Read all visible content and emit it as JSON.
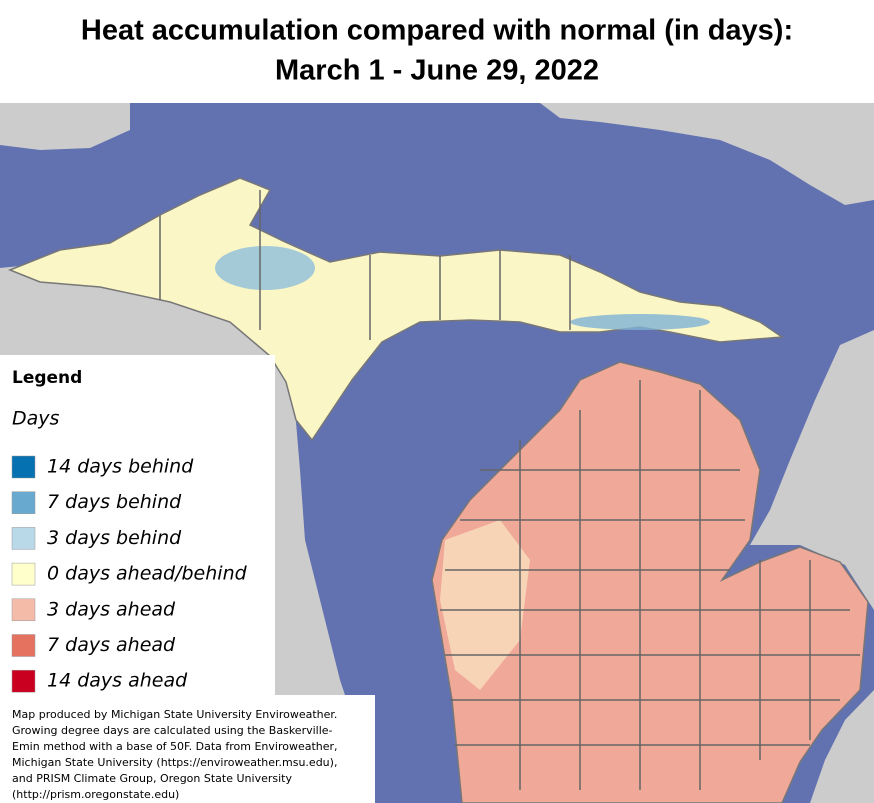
{
  "title": [
    "Heat accumulation compared with normal (in days):",
    "March 1 - June 29, 2022"
  ],
  "legend": {
    "title": "Legend",
    "subtitle": "Days",
    "items": [
      {
        "label": "14 days behind",
        "color": "#0571b0"
      },
      {
        "label": "7 days behind",
        "color": "#67a9cf"
      },
      {
        "label": "3 days behind",
        "color": "#b9d9e9"
      },
      {
        "label": "0 days ahead/behind",
        "color": "#ffffcc"
      },
      {
        "label": "3 days ahead",
        "color": "#f4bba9"
      },
      {
        "label": "7 days ahead",
        "color": "#e5725f"
      },
      {
        "label": "14 days ahead",
        "color": "#ca0020"
      }
    ]
  },
  "credits": [
    "Map produced by Michigan State University Enviroweather.",
    "Growing degree days are calculated using the Baskerville-",
    "Emin method with a base of 50F.  Data from Enviroweather,",
    "Michigan State University (https://enviroweather.msu.edu),",
    "and PRISM Climate Group, Oregon State University",
    "(http://prism.oregonstate.edu)"
  ]
}
